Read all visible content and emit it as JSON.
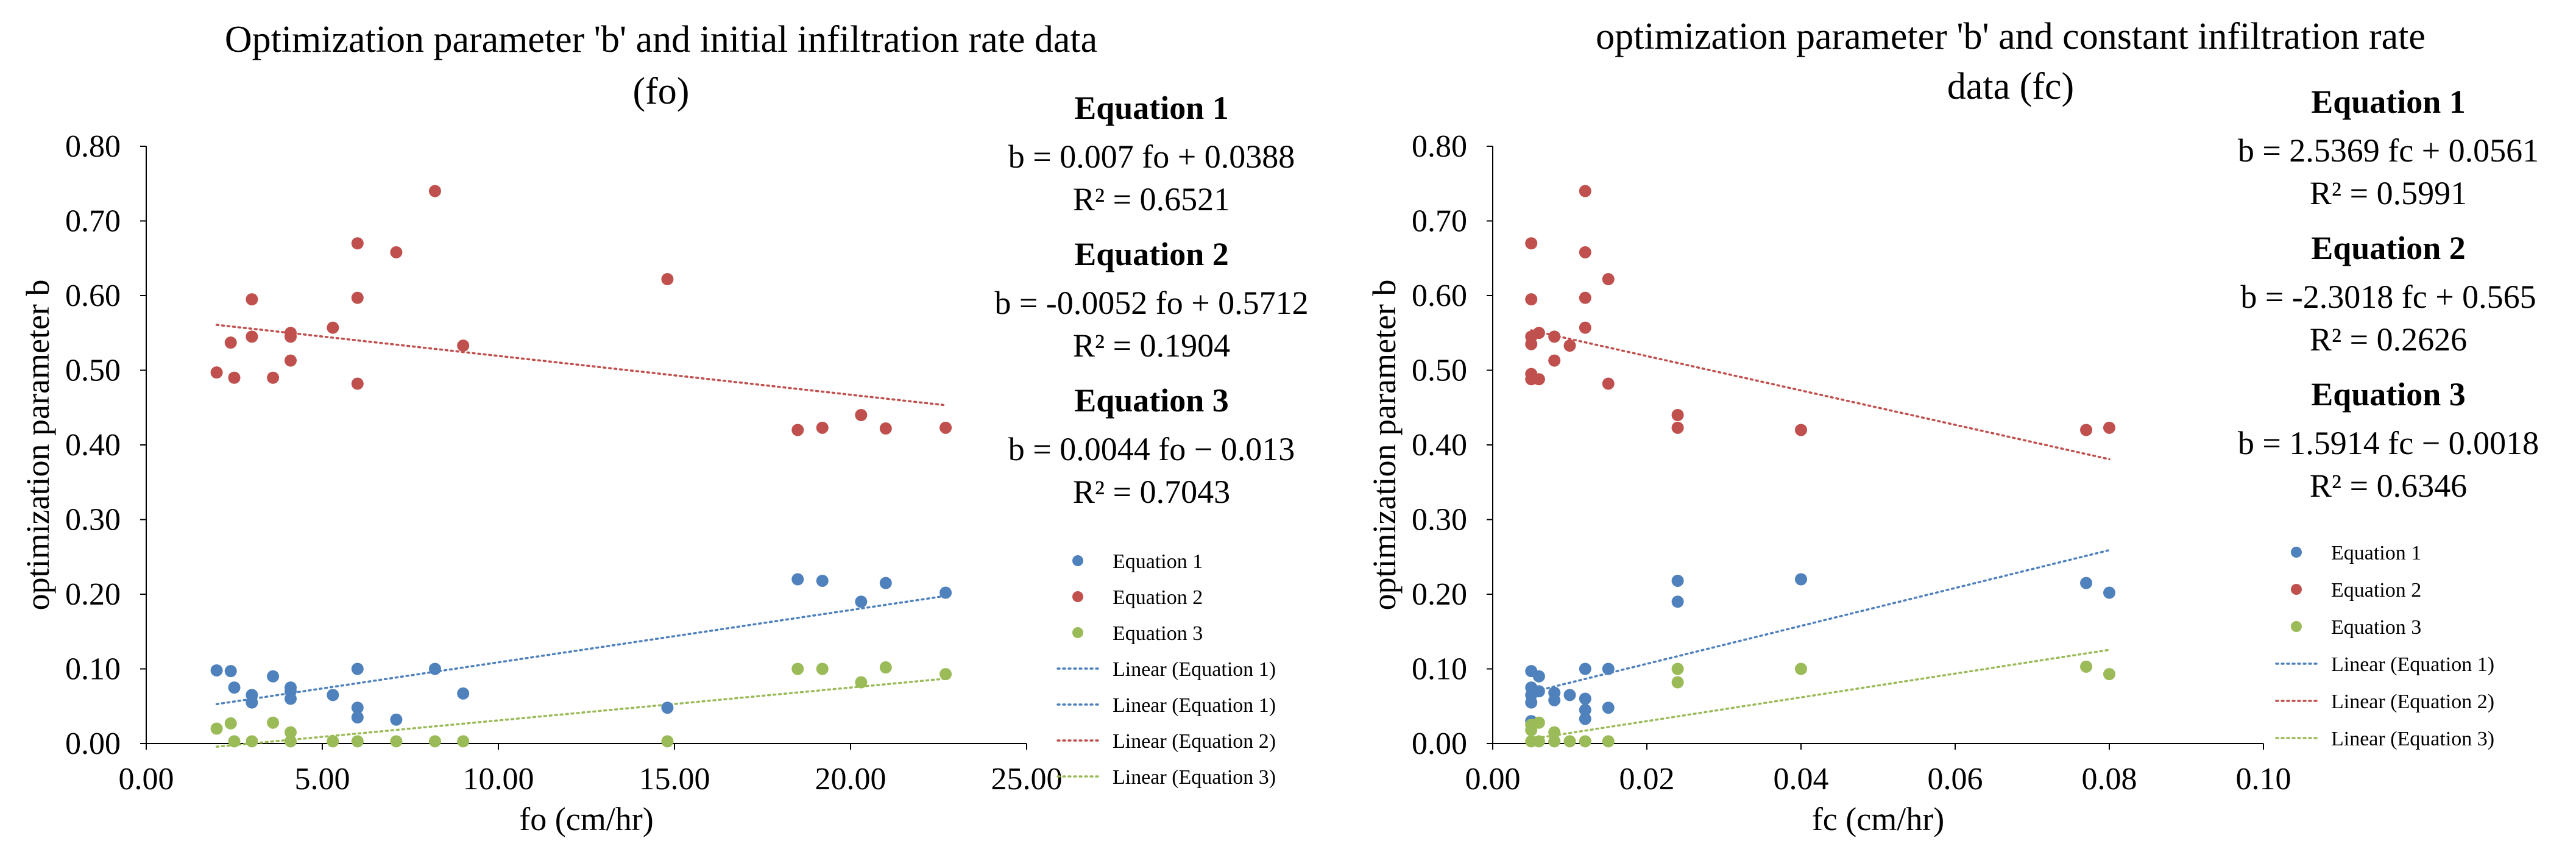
{
  "chart_data": [
    {
      "type": "scatter",
      "title": "Optimization parameter 'b' and initial infiltration rate data (fo)",
      "title_lines": [
        "Optimization parameter 'b' and initial infiltration rate data",
        "(fo)"
      ],
      "xlabel": "fo (cm/hr)",
      "ylabel": "optimization parameter b",
      "xlim": [
        0,
        25
      ],
      "ylim": [
        0,
        0.8
      ],
      "x_ticks": [
        "0.00",
        "5.00",
        "10.00",
        "15.00",
        "20.00",
        "25.00"
      ],
      "y_ticks": [
        "0.00",
        "0.10",
        "0.20",
        "0.30",
        "0.40",
        "0.50",
        "0.60",
        "0.70",
        "0.80"
      ],
      "equations": [
        {
          "head": "Equation 1",
          "eq": "b = 0.007 fo + 0.0388",
          "r2": "R² = 0.6521"
        },
        {
          "head": "Equation 2",
          "eq": "b = -0.0052 fo + 0.5712",
          "r2": "R² = 0.1904"
        },
        {
          "head": "Equation 3",
          "eq": "b = 0.0044 fo − 0.013",
          "r2": "R² = 0.7043"
        }
      ],
      "legend": [
        "Equation 1",
        "Equation 2",
        "Equation 3",
        "Linear (Equation 1)",
        "Linear (Equation 1)",
        "Linear (Equation 2)",
        "Linear (Equation 3)"
      ],
      "series": [
        {
          "name": "Equation 1",
          "color": "#4f81bd",
          "points": [
            [
              2.0,
              0.098
            ],
            [
              2.4,
              0.097
            ],
            [
              2.5,
              0.075
            ],
            [
              3.0,
              0.065
            ],
            [
              3.0,
              0.055
            ],
            [
              3.6,
              0.09
            ],
            [
              4.1,
              0.075
            ],
            [
              4.1,
              0.07
            ],
            [
              4.1,
              0.06
            ],
            [
              5.3,
              0.065
            ],
            [
              6.0,
              0.1
            ],
            [
              6.0,
              0.048
            ],
            [
              6.0,
              0.035
            ],
            [
              7.1,
              0.032
            ],
            [
              8.2,
              0.1
            ],
            [
              9.0,
              0.067
            ],
            [
              14.8,
              0.048
            ],
            [
              18.5,
              0.22
            ],
            [
              19.2,
              0.218
            ],
            [
              20.3,
              0.19
            ],
            [
              21.0,
              0.215
            ],
            [
              22.7,
              0.202
            ]
          ],
          "trend": {
            "slope": 0.007,
            "intercept": 0.0388,
            "x_range": [
              2.0,
              22.7
            ]
          }
        },
        {
          "name": "Equation 2",
          "color": "#c0504d",
          "points": [
            [
              2.0,
              0.497
            ],
            [
              2.4,
              0.537
            ],
            [
              2.5,
              0.49
            ],
            [
              3.0,
              0.595
            ],
            [
              3.0,
              0.545
            ],
            [
              3.6,
              0.49
            ],
            [
              4.1,
              0.55
            ],
            [
              4.1,
              0.545
            ],
            [
              4.1,
              0.513
            ],
            [
              5.3,
              0.557
            ],
            [
              6.0,
              0.67
            ],
            [
              6.0,
              0.597
            ],
            [
              6.0,
              0.482
            ],
            [
              7.1,
              0.658
            ],
            [
              8.2,
              0.74
            ],
            [
              9.0,
              0.533
            ],
            [
              14.8,
              0.622
            ],
            [
              18.5,
              0.42
            ],
            [
              19.2,
              0.423
            ],
            [
              20.3,
              0.44
            ],
            [
              21.0,
              0.422
            ],
            [
              22.7,
              0.423
            ]
          ],
          "trend": {
            "slope": -0.0052,
            "intercept": 0.5712,
            "x_range": [
              2.0,
              22.7
            ]
          }
        },
        {
          "name": "Equation 3",
          "color": "#9bbb59",
          "points": [
            [
              2.0,
              0.02
            ],
            [
              2.4,
              0.027
            ],
            [
              2.5,
              0.003
            ],
            [
              3.0,
              0.003
            ],
            [
              3.6,
              0.028
            ],
            [
              4.1,
              0.015
            ],
            [
              4.1,
              0.003
            ],
            [
              5.3,
              0.003
            ],
            [
              6.0,
              0.003
            ],
            [
              7.1,
              0.003
            ],
            [
              8.2,
              0.003
            ],
            [
              9.0,
              0.003
            ],
            [
              14.8,
              0.003
            ],
            [
              18.5,
              0.1
            ],
            [
              19.2,
              0.1
            ],
            [
              20.3,
              0.082
            ],
            [
              21.0,
              0.102
            ],
            [
              22.7,
              0.093
            ]
          ],
          "trend": {
            "slope": 0.0044,
            "intercept": -0.013,
            "x_range": [
              2.0,
              22.7
            ]
          }
        }
      ]
    },
    {
      "type": "scatter",
      "title": "optimization parameter 'b' and constant infiltration rate data (fc)",
      "title_lines": [
        "optimization parameter 'b' and constant infiltration rate",
        "data (fc)"
      ],
      "xlabel": "fc (cm/hr)",
      "ylabel": "optimization parameter b",
      "xlim": [
        0,
        0.1
      ],
      "ylim": [
        0,
        0.8
      ],
      "x_ticks": [
        "0.00",
        "0.02",
        "0.04",
        "0.06",
        "0.08",
        "0.10"
      ],
      "y_ticks": [
        "0.00",
        "0.10",
        "0.20",
        "0.30",
        "0.40",
        "0.50",
        "0.60",
        "0.70",
        "0.80"
      ],
      "equations": [
        {
          "head": "Equation 1",
          "eq": "b = 2.5369 fc + 0.0561",
          "r2": "R² = 0.5991"
        },
        {
          "head": "Equation 2",
          "eq": "b = -2.3018 fc + 0.565",
          "r2": "R² = 0.2626"
        },
        {
          "head": "Equation 3",
          "eq": "b = 1.5914 fc − 0.0018",
          "r2": "R² = 0.6346"
        }
      ],
      "legend": [
        "Equation 1",
        "Equation 2",
        "Equation 3",
        "Linear (Equation 1)",
        "Linear (Equation 2)",
        "Linear (Equation 3)"
      ],
      "series": [
        {
          "name": "Equation 1",
          "color": "#4f81bd",
          "points": [
            [
              0.005,
              0.097
            ],
            [
              0.005,
              0.075
            ],
            [
              0.005,
              0.065
            ],
            [
              0.005,
              0.055
            ],
            [
              0.005,
              0.03
            ],
            [
              0.006,
              0.09
            ],
            [
              0.006,
              0.07
            ],
            [
              0.008,
              0.068
            ],
            [
              0.008,
              0.058
            ],
            [
              0.01,
              0.065
            ],
            [
              0.012,
              0.1
            ],
            [
              0.012,
              0.06
            ],
            [
              0.012,
              0.045
            ],
            [
              0.012,
              0.033
            ],
            [
              0.015,
              0.1
            ],
            [
              0.015,
              0.048
            ],
            [
              0.024,
              0.218
            ],
            [
              0.024,
              0.19
            ],
            [
              0.04,
              0.22
            ],
            [
              0.077,
              0.215
            ],
            [
              0.08,
              0.202
            ]
          ],
          "trend": {
            "slope": 2.5369,
            "intercept": 0.0561,
            "x_range": [
              0.005,
              0.08
            ]
          }
        },
        {
          "name": "Equation 2",
          "color": "#c0504d",
          "points": [
            [
              0.005,
              0.67
            ],
            [
              0.005,
              0.595
            ],
            [
              0.005,
              0.545
            ],
            [
              0.005,
              0.535
            ],
            [
              0.005,
              0.495
            ],
            [
              0.005,
              0.488
            ],
            [
              0.006,
              0.55
            ],
            [
              0.006,
              0.488
            ],
            [
              0.008,
              0.545
            ],
            [
              0.008,
              0.513
            ],
            [
              0.01,
              0.533
            ],
            [
              0.012,
              0.74
            ],
            [
              0.012,
              0.658
            ],
            [
              0.012,
              0.597
            ],
            [
              0.012,
              0.557
            ],
            [
              0.015,
              0.622
            ],
            [
              0.015,
              0.482
            ],
            [
              0.024,
              0.44
            ],
            [
              0.024,
              0.423
            ],
            [
              0.04,
              0.42
            ],
            [
              0.077,
              0.42
            ],
            [
              0.08,
              0.423
            ]
          ],
          "trend": {
            "slope": -2.3018,
            "intercept": 0.565,
            "x_range": [
              0.005,
              0.08
            ]
          }
        },
        {
          "name": "Equation 3",
          "color": "#9bbb59",
          "points": [
            [
              0.005,
              0.025
            ],
            [
              0.005,
              0.018
            ],
            [
              0.005,
              0.003
            ],
            [
              0.006,
              0.028
            ],
            [
              0.006,
              0.003
            ],
            [
              0.008,
              0.015
            ],
            [
              0.008,
              0.003
            ],
            [
              0.01,
              0.003
            ],
            [
              0.012,
              0.003
            ],
            [
              0.015,
              0.003
            ],
            [
              0.024,
              0.1
            ],
            [
              0.024,
              0.082
            ],
            [
              0.04,
              0.1
            ],
            [
              0.077,
              0.103
            ],
            [
              0.08,
              0.093
            ]
          ],
          "trend": {
            "slope": 1.5914,
            "intercept": -0.0018,
            "x_range": [
              0.005,
              0.08
            ]
          }
        }
      ]
    }
  ]
}
